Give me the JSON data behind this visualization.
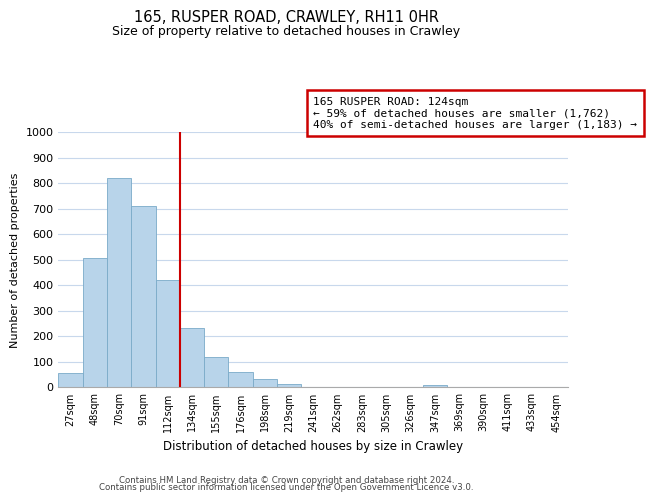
{
  "title1": "165, RUSPER ROAD, CRAWLEY, RH11 0HR",
  "title2": "Size of property relative to detached houses in Crawley",
  "xlabel": "Distribution of detached houses by size in Crawley",
  "ylabel": "Number of detached properties",
  "bin_labels": [
    "27sqm",
    "48sqm",
    "70sqm",
    "91sqm",
    "112sqm",
    "134sqm",
    "155sqm",
    "176sqm",
    "198sqm",
    "219sqm",
    "241sqm",
    "262sqm",
    "283sqm",
    "305sqm",
    "326sqm",
    "347sqm",
    "369sqm",
    "390sqm",
    "411sqm",
    "433sqm",
    "454sqm"
  ],
  "bar_heights": [
    55,
    505,
    820,
    710,
    420,
    230,
    118,
    57,
    33,
    12,
    0,
    0,
    0,
    0,
    0,
    8,
    0,
    0,
    0,
    0,
    0
  ],
  "bar_color": "#b8d4ea",
  "bar_edge_color": "#7aaac8",
  "vline_x": 5,
  "vline_color": "#cc0000",
  "annotation_title": "165 RUSPER ROAD: 124sqm",
  "annotation_line1": "← 59% of detached houses are smaller (1,762)",
  "annotation_line2": "40% of semi-detached houses are larger (1,183) →",
  "annotation_box_color": "#ffffff",
  "annotation_box_edge": "#cc0000",
  "ylim": [
    0,
    1000
  ],
  "yticks": [
    0,
    100,
    200,
    300,
    400,
    500,
    600,
    700,
    800,
    900,
    1000
  ],
  "footer1": "Contains HM Land Registry data © Crown copyright and database right 2024.",
  "footer2": "Contains public sector information licensed under the Open Government Licence v3.0.",
  "bg_color": "#ffffff",
  "grid_color": "#c8d8ec"
}
